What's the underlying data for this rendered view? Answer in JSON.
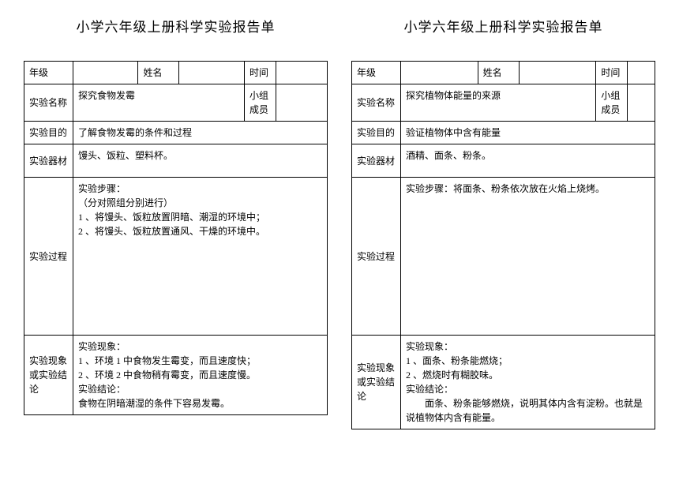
{
  "colors": {
    "bg": "#ffffff",
    "text": "#000000",
    "border": "#000000"
  },
  "labels": {
    "grade": "年级",
    "name": "姓名",
    "time": "时间",
    "exp_name": "实验名称",
    "group": "小组成员",
    "purpose": "实验目的",
    "equipment": "实验器材",
    "process": "实验过程",
    "result": "实验现象或实验结论"
  },
  "forms": [
    {
      "title": "小学六年级上册科学实验报告单",
      "grade_val": "",
      "name_val": "",
      "time_val": "",
      "exp_name_val": "探究食物发霉",
      "group_val": "",
      "purpose_val": "了解食物发霉的条件和过程",
      "equipment_val": "馒头、饭粒、塑料杯。",
      "process_val": "实验步骤：\n（分对照组分别进行）\n1 、将馒头、饭粒放置阴暗、潮湿的环境中；\n2 、将馒头、饭粒放置通风、干燥的环境中。",
      "result_val": "实验现象：\n1 、环境 1 中食物发生霉变，而且速度快；\n2 、环境 2 中食物稍有霉变，而且速度慢。\n实验结论：\n食物在阴暗潮湿的条件下容易发霉。"
    },
    {
      "title": "小学六年级上册科学实验报告单",
      "grade_val": "",
      "name_val": "",
      "time_val": "",
      "exp_name_val": "探究植物体能量的来源",
      "group_val": "",
      "purpose_val": "验证植物体中含有能量",
      "equipment_val": "酒精、面条、粉条。",
      "process_val": "实验步骤：将面条、粉条依次放在火焰上烧烤。",
      "result_val": "实验现象：\n1 、面条、粉条能燃烧；\n2 、燃烧时有糊胶味。\n实验结论：\n　　面条、粉条能够燃烧，说明其体内含有淀粉。也就是说植物体内含有能量。"
    }
  ]
}
